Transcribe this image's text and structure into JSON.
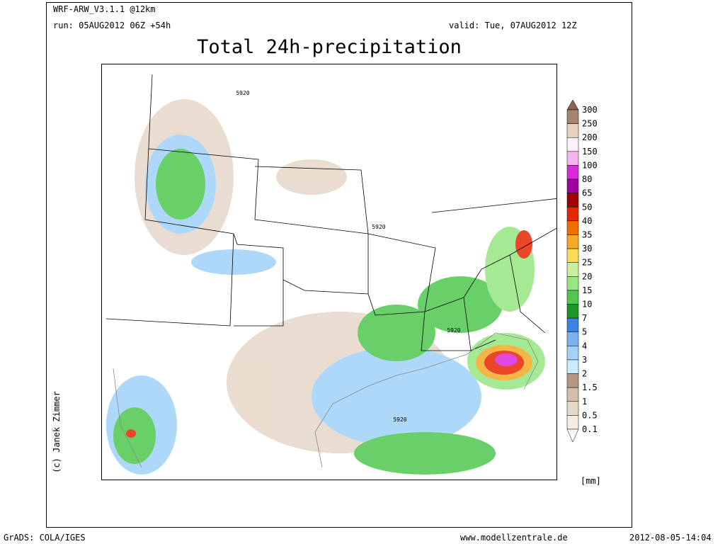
{
  "header": {
    "model": "WRF-ARW_V3.1.1 @12km",
    "run": "run: 05AUG2012 06Z +54h",
    "valid": "valid: Tue, 07AUG2012 12Z",
    "title": "Total 24h-precipitation"
  },
  "map": {
    "contour_labels": [
      "5920",
      "5920",
      "5920",
      "5920"
    ],
    "credit": "(c) Janek Zimmer"
  },
  "colorbar": {
    "levels": [
      300,
      250,
      200,
      150,
      100,
      80,
      65,
      50,
      40,
      35,
      30,
      25,
      20,
      15,
      10,
      7,
      5,
      4,
      3,
      2,
      1.5,
      1,
      0.5,
      0.1
    ],
    "colors": [
      "#8c6450",
      "#a88270",
      "#e6d2be",
      "#fff0fa",
      "#f5b4f0",
      "#dc28dc",
      "#a000a0",
      "#a00000",
      "#e62800",
      "#f56e00",
      "#f5aa28",
      "#fadc5a",
      "#c8f0a0",
      "#96e682",
      "#50c850",
      "#1e9628",
      "#3c82e6",
      "#78b4f0",
      "#a0d2fa",
      "#c8ebff",
      "#b49682",
      "#d2beaa",
      "#e6d7c8",
      "#f5ebe1",
      "#ffffff"
    ],
    "unit": "[mm]"
  },
  "footer": {
    "left": "GrADS: COLA/IGES",
    "center": "www.modellzentrale.de",
    "right": "2012-08-05-14:04"
  }
}
